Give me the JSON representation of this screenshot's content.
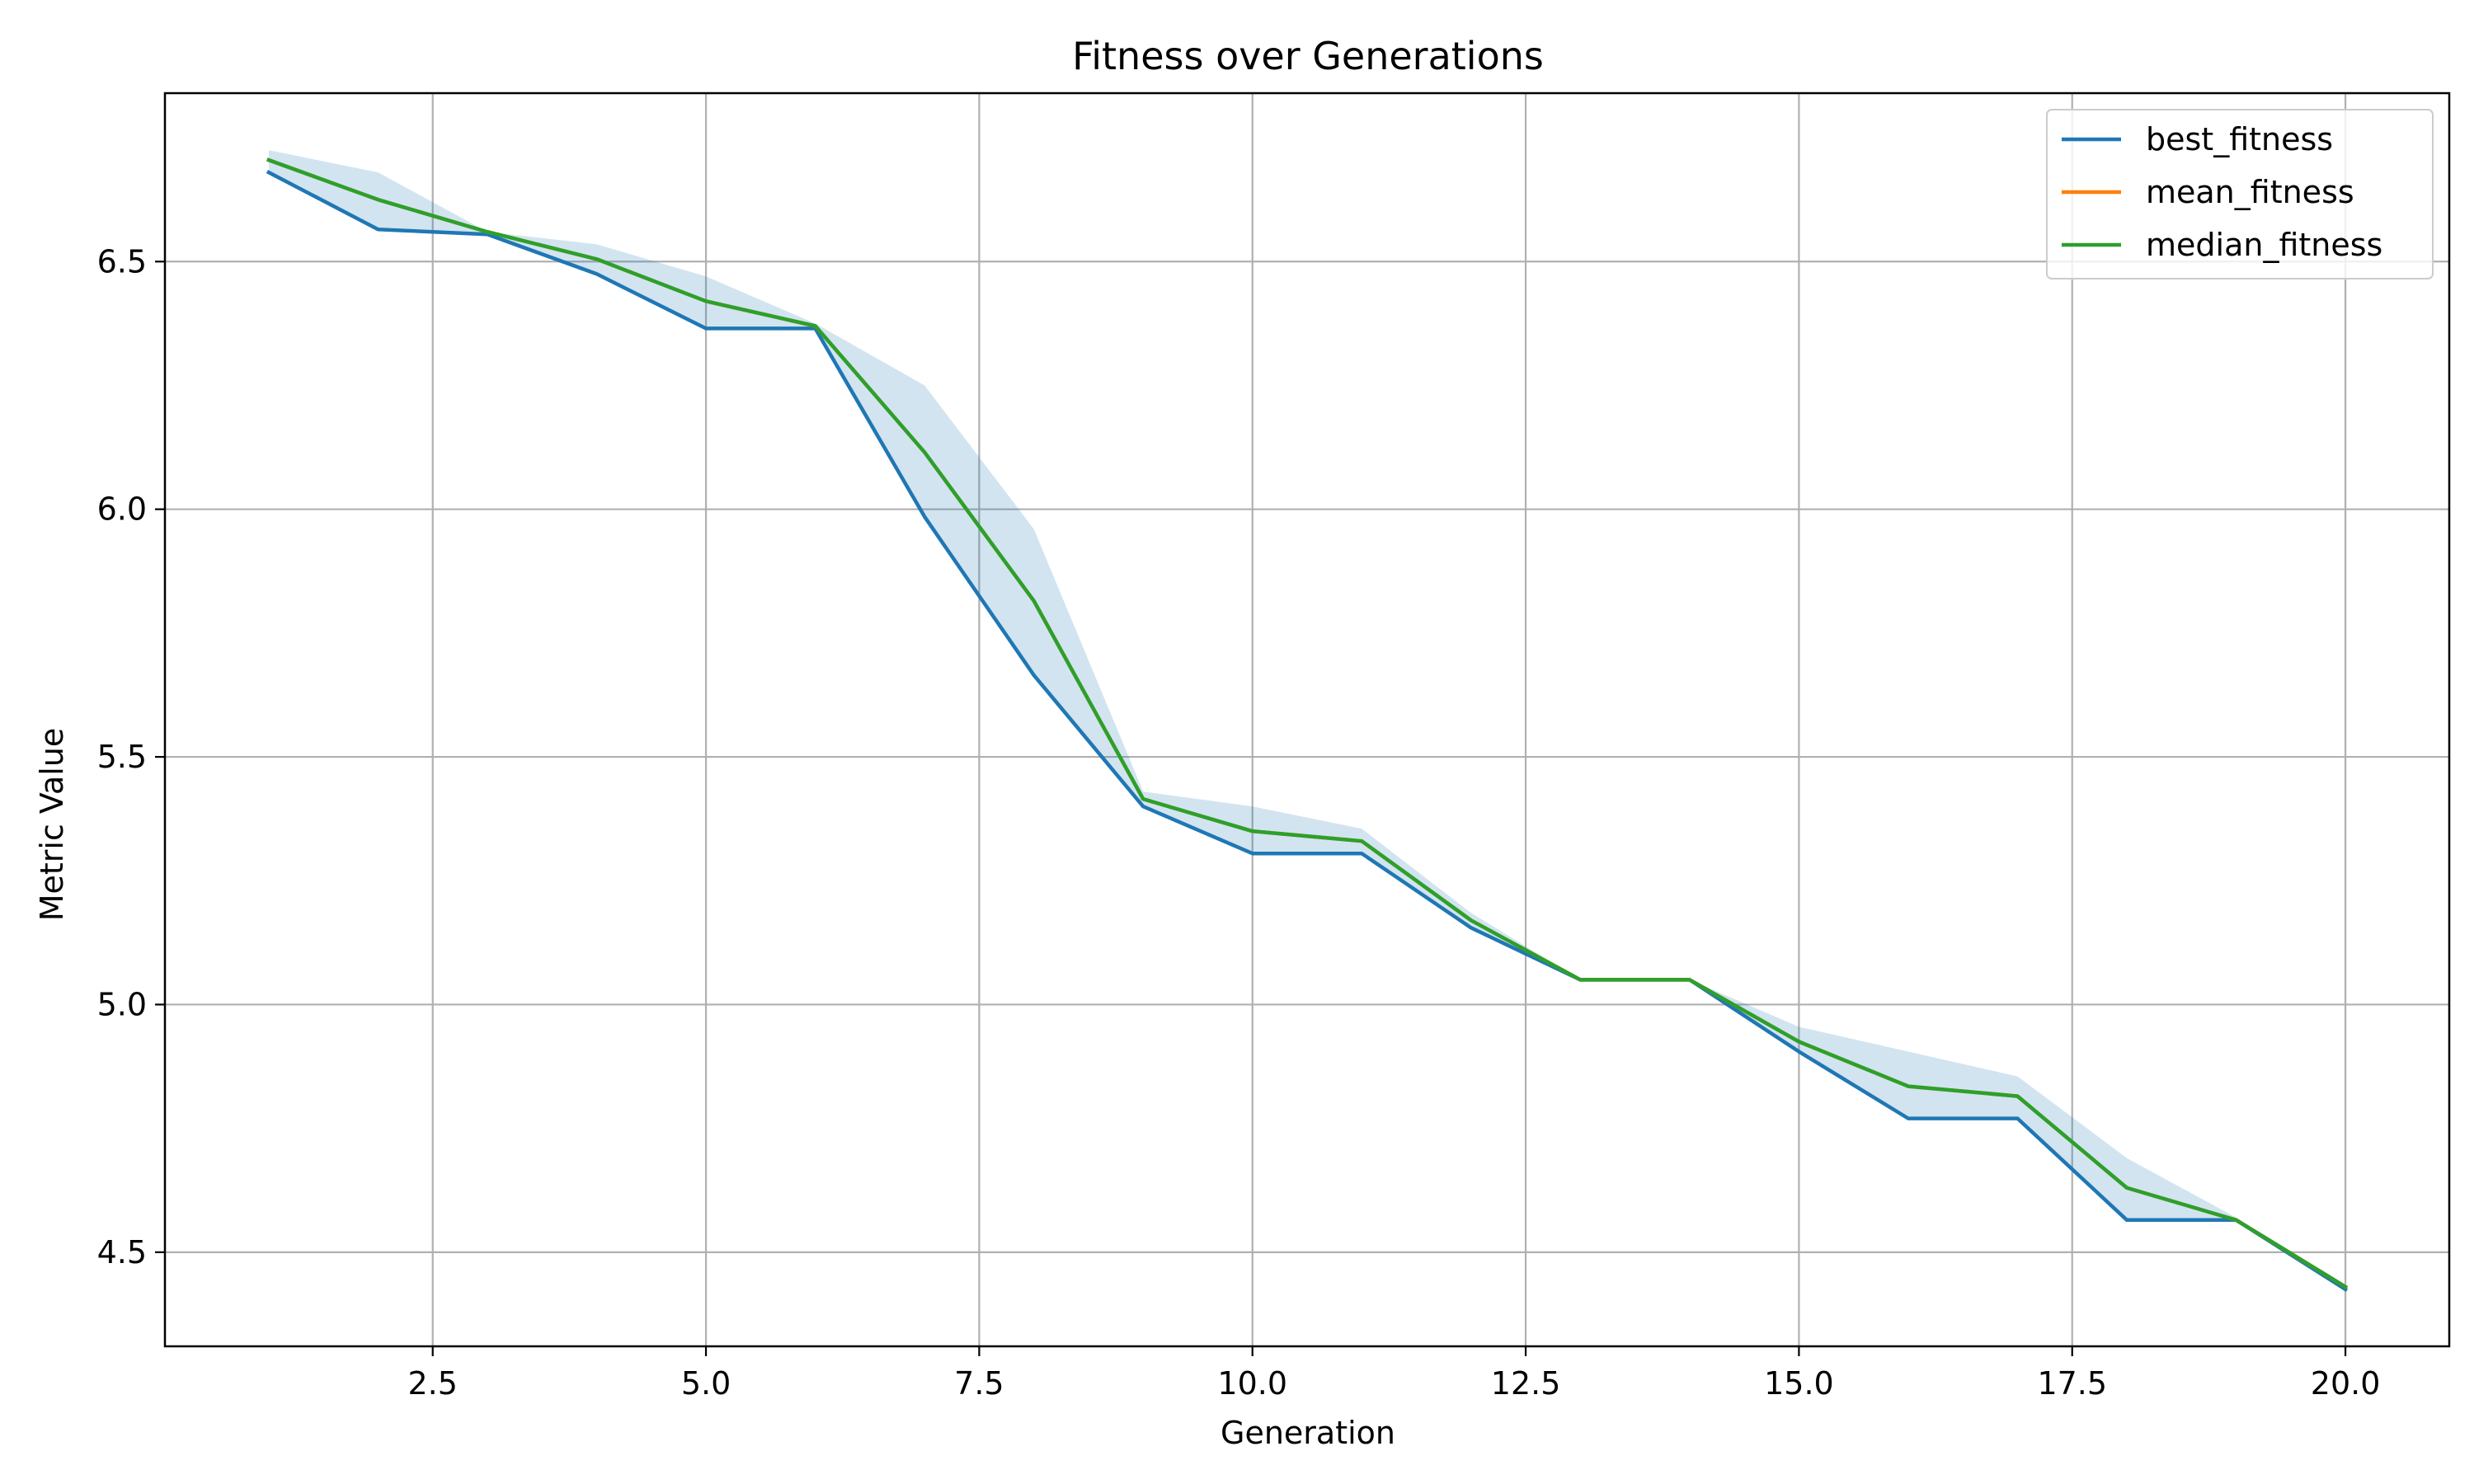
{
  "chart_data": {
    "type": "line",
    "title": "Fitness over Generations",
    "xlabel": "Generation",
    "ylabel": "Metric Value",
    "xlim": [
      0.05,
      20.95
    ],
    "ylim": [
      4.31,
      6.84
    ],
    "xticks": [
      2.5,
      5.0,
      7.5,
      10.0,
      12.5,
      15.0,
      17.5,
      20.0
    ],
    "xtick_labels": [
      "2.5",
      "5.0",
      "7.5",
      "10.0",
      "12.5",
      "15.0",
      "17.5",
      "20.0"
    ],
    "yticks": [
      4.5,
      5.0,
      5.5,
      6.0,
      6.5
    ],
    "ytick_labels": [
      "4.5",
      "5.0",
      "5.5",
      "6.0",
      "6.5"
    ],
    "grid": true,
    "legend_position": "top-right",
    "x": [
      1,
      2,
      3,
      4,
      5,
      6,
      7,
      8,
      9,
      10,
      11,
      12,
      13,
      14,
      15,
      16,
      17,
      18,
      19,
      20
    ],
    "series": [
      {
        "name": "best_fitness",
        "color": "#1f77b4",
        "values": [
          6.68,
          6.565,
          6.555,
          6.475,
          6.365,
          6.365,
          5.985,
          5.665,
          5.4,
          5.305,
          5.305,
          5.155,
          5.05,
          5.05,
          4.905,
          4.77,
          4.77,
          4.565,
          4.565,
          4.425
        ]
      },
      {
        "name": "mean_fitness",
        "color": "#ff7f0e",
        "values": [
          6.705,
          6.625,
          6.56,
          6.505,
          6.42,
          6.37,
          6.115,
          5.815,
          5.415,
          5.35,
          5.33,
          5.17,
          5.05,
          5.05,
          4.925,
          4.835,
          4.815,
          4.63,
          4.565,
          4.43
        ]
      },
      {
        "name": "median_fitness",
        "color": "#2ca02c",
        "values": [
          6.705,
          6.625,
          6.56,
          6.505,
          6.42,
          6.37,
          6.115,
          5.815,
          5.415,
          5.35,
          5.33,
          5.17,
          5.05,
          5.05,
          4.925,
          4.835,
          4.815,
          4.63,
          4.565,
          4.43
        ]
      }
    ],
    "band": {
      "color": "#1f77b4",
      "opacity": 0.2,
      "lower": [
        6.68,
        6.565,
        6.555,
        6.475,
        6.365,
        6.365,
        5.985,
        5.665,
        5.4,
        5.305,
        5.305,
        5.155,
        5.05,
        5.05,
        4.905,
        4.77,
        4.77,
        4.565,
        4.565,
        4.425
      ],
      "upper": [
        6.725,
        6.68,
        6.56,
        6.535,
        6.47,
        6.375,
        6.25,
        5.96,
        5.43,
        5.4,
        5.355,
        5.185,
        5.05,
        5.05,
        4.955,
        4.905,
        4.855,
        4.69,
        4.57,
        4.435
      ]
    }
  }
}
